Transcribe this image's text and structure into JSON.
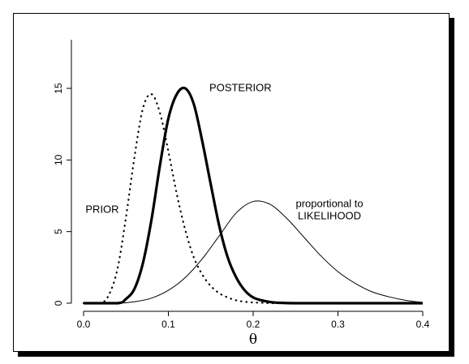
{
  "chart_data": {
    "type": "line",
    "title": "",
    "xlabel": "θ",
    "ylabel": "",
    "xlim": [
      0.0,
      0.4
    ],
    "ylim": [
      0,
      18
    ],
    "x_ticks": [
      0.0,
      0.1,
      0.2,
      0.3,
      0.4
    ],
    "x_tick_labels": [
      "0.0",
      "0.1",
      "0.2",
      "0.3",
      "0.4"
    ],
    "y_ticks": [
      0,
      5,
      10,
      15
    ],
    "y_tick_labels": [
      "0",
      "5",
      "10",
      "15"
    ],
    "grid": false,
    "legend": "none",
    "series": [
      {
        "key": "prior",
        "style": "dotted",
        "x": [
          0.0,
          0.02,
          0.03,
          0.04,
          0.05,
          0.06,
          0.07,
          0.08,
          0.09,
          0.1,
          0.11,
          0.12,
          0.13,
          0.14,
          0.15,
          0.16,
          0.17,
          0.18,
          0.19,
          0.2,
          0.21,
          0.22,
          0.24,
          0.26,
          0.3,
          0.4
        ],
        "y": [
          0.0,
          0.0,
          0.6,
          2.4,
          6.0,
          10.2,
          13.6,
          14.6,
          13.3,
          10.6,
          7.6,
          5.1,
          3.2,
          2.0,
          1.2,
          0.7,
          0.4,
          0.2,
          0.1,
          0.05,
          0.03,
          0.0,
          0.0,
          0.0,
          0.0,
          0.0
        ]
      },
      {
        "key": "posterior",
        "style": "thick",
        "x": [
          0.0,
          0.04,
          0.05,
          0.06,
          0.07,
          0.08,
          0.09,
          0.1,
          0.11,
          0.12,
          0.13,
          0.14,
          0.15,
          0.16,
          0.17,
          0.18,
          0.19,
          0.2,
          0.21,
          0.22,
          0.23,
          0.25,
          0.3,
          0.4
        ],
        "y": [
          0.0,
          0.0,
          0.3,
          1.0,
          2.8,
          5.8,
          9.6,
          12.9,
          14.6,
          15.0,
          13.9,
          11.3,
          8.3,
          5.4,
          3.2,
          1.8,
          0.9,
          0.4,
          0.2,
          0.08,
          0.03,
          0.0,
          0.0,
          0.0
        ]
      },
      {
        "key": "likelihood",
        "style": "thin",
        "x": [
          0.0,
          0.04,
          0.06,
          0.08,
          0.1,
          0.12,
          0.14,
          0.16,
          0.18,
          0.2,
          0.22,
          0.24,
          0.26,
          0.28,
          0.3,
          0.32,
          0.34,
          0.36,
          0.38,
          0.4
        ],
        "y": [
          0.0,
          0.0,
          0.1,
          0.35,
          0.9,
          1.8,
          3.1,
          4.7,
          6.3,
          7.1,
          6.9,
          5.9,
          4.6,
          3.3,
          2.2,
          1.4,
          0.8,
          0.45,
          0.2,
          0.05
        ]
      }
    ],
    "annotations": [
      {
        "key": "prior",
        "lines": [
          "PRIOR"
        ],
        "x": 0.022,
        "y": 6.3,
        "anchor": "middle"
      },
      {
        "key": "posterior",
        "lines": [
          "POSTERIOR"
        ],
        "x": 0.185,
        "y": 14.8,
        "anchor": "middle"
      },
      {
        "key": "likelihood",
        "lines": [
          "proportional to",
          "LIKELIHOOD"
        ],
        "x": 0.29,
        "y": 6.7,
        "anchor": "middle"
      }
    ]
  }
}
